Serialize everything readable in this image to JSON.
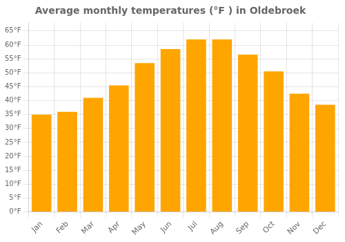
{
  "chart_data": {
    "type": "bar",
    "title": "Average monthly temperatures (°F ) in Oldebroek",
    "categories": [
      "Jan",
      "Feb",
      "Mar",
      "Apr",
      "May",
      "Jun",
      "Jul",
      "Aug",
      "Sep",
      "Oct",
      "Nov",
      "Dec"
    ],
    "values": [
      35,
      36,
      41,
      45.5,
      53.5,
      58.5,
      62,
      62,
      56.5,
      50.5,
      42.5,
      38.5
    ],
    "color": "#FFA500",
    "ylim": [
      0,
      68
    ],
    "yticks": [
      {
        "value": 0,
        "label": "0°F"
      },
      {
        "value": 5,
        "label": "5°F"
      },
      {
        "value": 10,
        "label": "10°F"
      },
      {
        "value": 15,
        "label": "15°F"
      },
      {
        "value": 20,
        "label": "20°F"
      },
      {
        "value": 25,
        "label": "25°F"
      },
      {
        "value": 30,
        "label": "30°F"
      },
      {
        "value": 35,
        "label": "35°F"
      },
      {
        "value": 40,
        "label": "40°F"
      },
      {
        "value": 45,
        "label": "45°F"
      },
      {
        "value": 50,
        "label": "50°F"
      },
      {
        "value": 55,
        "label": "55°F"
      },
      {
        "value": 60,
        "label": "60°F"
      },
      {
        "value": 65,
        "label": "65°F"
      }
    ],
    "grid": true
  }
}
